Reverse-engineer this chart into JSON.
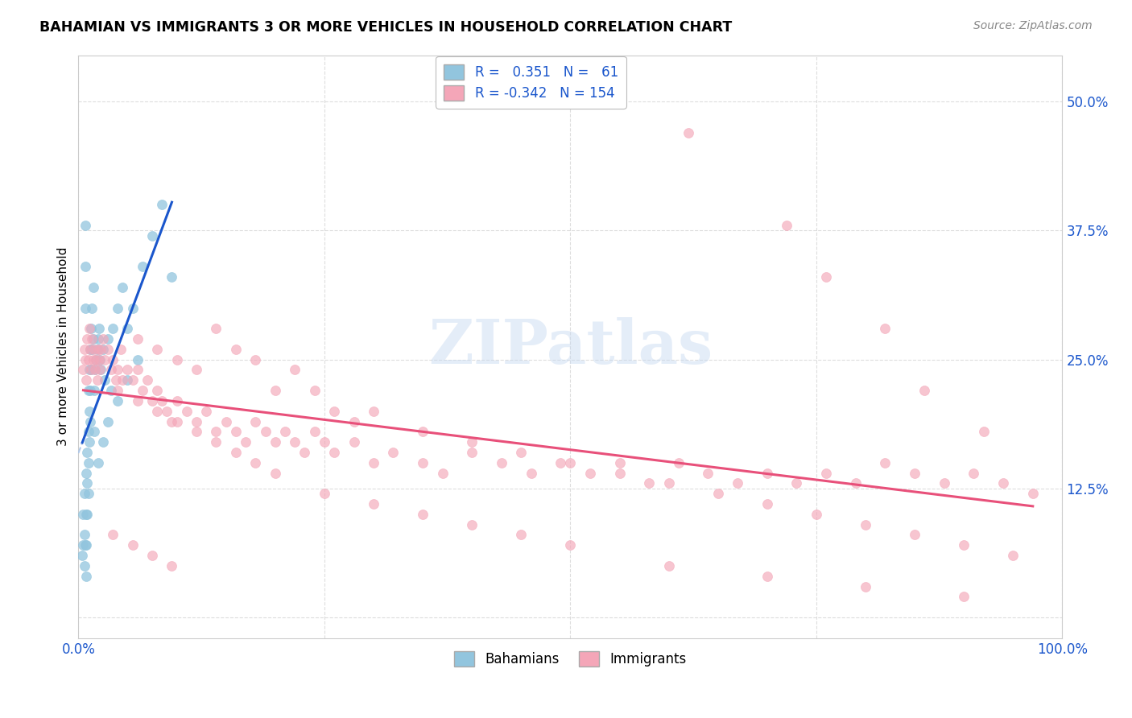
{
  "title": "BAHAMIAN VS IMMIGRANTS 3 OR MORE VEHICLES IN HOUSEHOLD CORRELATION CHART",
  "source": "Source: ZipAtlas.com",
  "ylabel": "3 or more Vehicles in Household",
  "ytick_labels": [
    "",
    "12.5%",
    "25.0%",
    "37.5%",
    "50.0%"
  ],
  "ytick_values": [
    0.0,
    0.125,
    0.25,
    0.375,
    0.5
  ],
  "xlim": [
    0.0,
    1.0
  ],
  "ylim": [
    -0.02,
    0.545
  ],
  "blue_color": "#92c5de",
  "pink_color": "#f4a6b8",
  "blue_line_color": "#1a56cc",
  "pink_line_color": "#e8507a",
  "dashed_line_color": "#b0c8e8",
  "watermark": "ZIPatlas",
  "bahamians_x": [
    0.004,
    0.005,
    0.005,
    0.006,
    0.006,
    0.006,
    0.007,
    0.007,
    0.007,
    0.007,
    0.008,
    0.008,
    0.008,
    0.008,
    0.009,
    0.009,
    0.009,
    0.01,
    0.01,
    0.01,
    0.01,
    0.011,
    0.011,
    0.011,
    0.012,
    0.012,
    0.012,
    0.013,
    0.013,
    0.014,
    0.014,
    0.015,
    0.015,
    0.016,
    0.016,
    0.017,
    0.018,
    0.019,
    0.02,
    0.021,
    0.022,
    0.023,
    0.025,
    0.027,
    0.03,
    0.033,
    0.035,
    0.04,
    0.045,
    0.05,
    0.055,
    0.065,
    0.075,
    0.085,
    0.095,
    0.02,
    0.025,
    0.03,
    0.04,
    0.05,
    0.06
  ],
  "bahamians_y": [
    0.06,
    0.1,
    0.07,
    0.08,
    0.05,
    0.12,
    0.38,
    0.34,
    0.3,
    0.07,
    0.14,
    0.1,
    0.07,
    0.04,
    0.16,
    0.13,
    0.1,
    0.22,
    0.18,
    0.15,
    0.12,
    0.24,
    0.2,
    0.17,
    0.26,
    0.22,
    0.19,
    0.28,
    0.24,
    0.3,
    0.26,
    0.32,
    0.27,
    0.22,
    0.18,
    0.24,
    0.25,
    0.26,
    0.27,
    0.28,
    0.25,
    0.24,
    0.26,
    0.23,
    0.27,
    0.22,
    0.28,
    0.3,
    0.32,
    0.28,
    0.3,
    0.34,
    0.37,
    0.4,
    0.33,
    0.15,
    0.17,
    0.19,
    0.21,
    0.23,
    0.25
  ],
  "immigrants_x": [
    0.005,
    0.006,
    0.007,
    0.008,
    0.009,
    0.01,
    0.011,
    0.012,
    0.013,
    0.014,
    0.015,
    0.016,
    0.017,
    0.018,
    0.019,
    0.02,
    0.021,
    0.022,
    0.023,
    0.025,
    0.027,
    0.03,
    0.033,
    0.035,
    0.038,
    0.04,
    0.043,
    0.045,
    0.05,
    0.055,
    0.06,
    0.065,
    0.07,
    0.075,
    0.08,
    0.085,
    0.09,
    0.095,
    0.1,
    0.11,
    0.12,
    0.13,
    0.14,
    0.15,
    0.16,
    0.17,
    0.18,
    0.19,
    0.2,
    0.21,
    0.22,
    0.23,
    0.24,
    0.25,
    0.26,
    0.28,
    0.3,
    0.32,
    0.35,
    0.37,
    0.4,
    0.43,
    0.46,
    0.49,
    0.52,
    0.55,
    0.58,
    0.61,
    0.64,
    0.67,
    0.7,
    0.73,
    0.76,
    0.79,
    0.82,
    0.85,
    0.88,
    0.91,
    0.94,
    0.97,
    0.06,
    0.08,
    0.1,
    0.12,
    0.14,
    0.16,
    0.18,
    0.2,
    0.22,
    0.24,
    0.26,
    0.28,
    0.3,
    0.35,
    0.4,
    0.45,
    0.5,
    0.55,
    0.6,
    0.65,
    0.7,
    0.75,
    0.8,
    0.85,
    0.9,
    0.95,
    0.04,
    0.06,
    0.08,
    0.1,
    0.12,
    0.14,
    0.16,
    0.18,
    0.2,
    0.25,
    0.3,
    0.35,
    0.4,
    0.45,
    0.5,
    0.6,
    0.7,
    0.8,
    0.9,
    0.035,
    0.055,
    0.075,
    0.095,
    0.62,
    0.72,
    0.82,
    0.92,
    0.76,
    0.86
  ],
  "immigrants_y": [
    0.24,
    0.26,
    0.25,
    0.23,
    0.27,
    0.25,
    0.28,
    0.26,
    0.24,
    0.27,
    0.25,
    0.26,
    0.24,
    0.25,
    0.23,
    0.26,
    0.25,
    0.24,
    0.26,
    0.27,
    0.25,
    0.26,
    0.24,
    0.25,
    0.23,
    0.24,
    0.26,
    0.23,
    0.24,
    0.23,
    0.24,
    0.22,
    0.23,
    0.21,
    0.22,
    0.21,
    0.2,
    0.19,
    0.21,
    0.2,
    0.19,
    0.2,
    0.18,
    0.19,
    0.18,
    0.17,
    0.19,
    0.18,
    0.17,
    0.18,
    0.17,
    0.16,
    0.18,
    0.17,
    0.16,
    0.17,
    0.15,
    0.16,
    0.15,
    0.14,
    0.16,
    0.15,
    0.14,
    0.15,
    0.14,
    0.15,
    0.13,
    0.15,
    0.14,
    0.13,
    0.14,
    0.13,
    0.14,
    0.13,
    0.15,
    0.14,
    0.13,
    0.14,
    0.13,
    0.12,
    0.27,
    0.26,
    0.25,
    0.24,
    0.28,
    0.26,
    0.25,
    0.22,
    0.24,
    0.22,
    0.2,
    0.19,
    0.2,
    0.18,
    0.17,
    0.16,
    0.15,
    0.14,
    0.13,
    0.12,
    0.11,
    0.1,
    0.09,
    0.08,
    0.07,
    0.06,
    0.22,
    0.21,
    0.2,
    0.19,
    0.18,
    0.17,
    0.16,
    0.15,
    0.14,
    0.12,
    0.11,
    0.1,
    0.09,
    0.08,
    0.07,
    0.05,
    0.04,
    0.03,
    0.02,
    0.08,
    0.07,
    0.06,
    0.05,
    0.47,
    0.38,
    0.28,
    0.18,
    0.33,
    0.22
  ]
}
